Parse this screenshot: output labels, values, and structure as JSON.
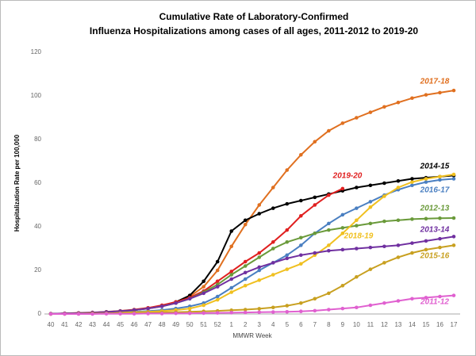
{
  "chart_data": {
    "type": "line",
    "title": [
      "Cumulative Rate of Laboratory-Confirmed",
      "Influenza Hospitalizations among cases of all ages, 2011-2012 to 2019-20"
    ],
    "x_label": "MMWR Week",
    "y_label": "Hospitalization  Rate per 100,000",
    "categories": [
      "40",
      "41",
      "42",
      "43",
      "44",
      "45",
      "46",
      "47",
      "48",
      "49",
      "50",
      "51",
      "52",
      "1",
      "2",
      "3",
      "4",
      "5",
      "6",
      "7",
      "8",
      "9",
      "10",
      "11",
      "12",
      "13",
      "14",
      "15",
      "16",
      "17"
    ],
    "ylim": [
      0,
      120
    ],
    "yticks": [
      0,
      20,
      40,
      60,
      80,
      100,
      120
    ],
    "grid": false,
    "series": [
      {
        "name": "2017-18",
        "color": "#e07020",
        "values": [
          0.1,
          0.2,
          0.4,
          0.6,
          0.9,
          1.3,
          1.9,
          2.7,
          3.8,
          5.5,
          8,
          12.5,
          20,
          31,
          41,
          50,
          58,
          66,
          73,
          79,
          84,
          87.5,
          90,
          92.5,
          95,
          97,
          99,
          100.5,
          101.5,
          102.5
        ]
      },
      {
        "name": "2014-15",
        "color": "#000000",
        "values": [
          0.1,
          0.2,
          0.3,
          0.5,
          0.8,
          1.2,
          1.8,
          2.6,
          3.8,
          5.5,
          8.5,
          15,
          24,
          38,
          43,
          46,
          48.5,
          50.5,
          52,
          53.5,
          55,
          56.5,
          58,
          59,
          60,
          61,
          62,
          62.5,
          63,
          63.5
        ]
      },
      {
        "name": "2019-20",
        "color": "#e02020",
        "values": [
          0.1,
          0.3,
          0.5,
          0.7,
          1,
          1.4,
          2,
          2.8,
          4,
          5.5,
          7.5,
          10.5,
          15,
          19.5,
          24,
          28,
          33,
          38.5,
          45,
          50,
          54.5,
          57.5,
          null,
          null,
          null,
          null,
          null,
          null,
          null,
          null
        ]
      },
      {
        "name": "2016-17",
        "color": "#4a7fc1",
        "values": [
          0,
          0.1,
          0.2,
          0.3,
          0.5,
          0.7,
          1,
          1.3,
          1.8,
          2.5,
          3.5,
          5,
          8,
          12,
          16,
          20,
          23.5,
          27,
          31.5,
          37,
          41.5,
          45.5,
          48.5,
          51.5,
          54.5,
          57,
          59,
          60.5,
          61.5,
          62
        ]
      },
      {
        "name": "2012-13",
        "color": "#6a9a3a",
        "values": [
          0.1,
          0.2,
          0.4,
          0.6,
          0.9,
          1.3,
          1.8,
          2.5,
          3.5,
          5,
          7,
          10,
          13.5,
          18,
          22,
          26,
          30,
          33,
          35,
          37,
          38.5,
          39.5,
          40.5,
          41.5,
          42.5,
          43,
          43.5,
          43.7,
          43.9,
          44
        ]
      },
      {
        "name": "2018-19",
        "color": "#f0c020",
        "values": [
          0,
          0.1,
          0.2,
          0.3,
          0.4,
          0.6,
          0.8,
          1,
          1.3,
          1.8,
          2.5,
          4,
          6.5,
          10,
          13,
          15.5,
          18,
          20.5,
          23,
          27,
          31.5,
          37,
          43,
          49,
          54,
          58,
          60.5,
          62,
          63,
          64
        ]
      },
      {
        "name": "2013-14",
        "color": "#7030a0",
        "values": [
          0.1,
          0.2,
          0.4,
          0.6,
          0.9,
          1.3,
          1.8,
          2.5,
          3.5,
          5,
          7,
          9.5,
          12.5,
          16,
          19,
          21.5,
          23.5,
          25.5,
          27,
          28,
          29,
          29.5,
          30,
          30.5,
          31,
          31.5,
          32.5,
          33.5,
          34.5,
          35.5
        ]
      },
      {
        "name": "2015-16",
        "color": "#c8a020",
        "values": [
          0,
          0,
          0.1,
          0.2,
          0.3,
          0.4,
          0.5,
          0.6,
          0.7,
          0.8,
          1,
          1.2,
          1.4,
          1.7,
          2,
          2.4,
          3,
          3.8,
          5,
          7,
          9.5,
          13,
          17,
          20.5,
          23.5,
          26,
          28,
          29.5,
          30.5,
          31.5
        ]
      },
      {
        "name": "2011-12",
        "color": "#e060d0",
        "values": [
          0,
          0,
          0,
          0,
          0.1,
          0.1,
          0.1,
          0.2,
          0.2,
          0.3,
          0.3,
          0.4,
          0.5,
          0.6,
          0.7,
          0.8,
          0.9,
          1,
          1.2,
          1.5,
          2,
          2.5,
          3,
          4,
          5,
          6,
          7,
          7.5,
          8,
          8.5
        ]
      }
    ]
  }
}
